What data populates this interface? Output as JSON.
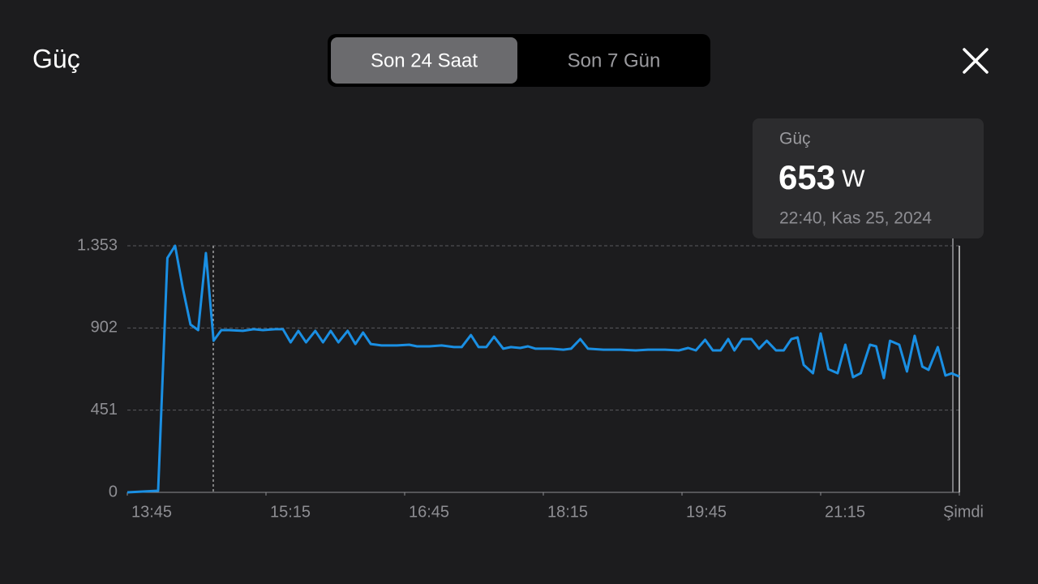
{
  "header": {
    "title": "Güç"
  },
  "segmented": {
    "tabs": [
      "Son 24 Saat",
      "Son 7 Gün"
    ],
    "selected": 0
  },
  "tooltip": {
    "label": "Güç",
    "value": 653,
    "unit": "W",
    "time": "22:40, Kas 25, 2024"
  },
  "chart_data": {
    "type": "line",
    "color": "#1a8fe3",
    "grid": true,
    "xlim": [
      825,
      1365
    ],
    "xticks": [
      {
        "value": 825,
        "label": "13:45"
      },
      {
        "value": 915,
        "label": "15:15"
      },
      {
        "value": 1005,
        "label": "16:45"
      },
      {
        "value": 1095,
        "label": "18:15"
      },
      {
        "value": 1185,
        "label": "19:45"
      },
      {
        "value": 1275,
        "label": "21:15"
      },
      {
        "value": 1365,
        "label": "Şimdi"
      }
    ],
    "ylim": [
      0,
      1353
    ],
    "yticks": [
      0,
      451,
      902,
      {
        "value": 1353,
        "label": "1.353"
      }
    ],
    "x": [
      825,
      845,
      851,
      856,
      861,
      866,
      871,
      876,
      881,
      886,
      891,
      900,
      907,
      913,
      921,
      926,
      931,
      936,
      941,
      947,
      952,
      957,
      962,
      968,
      973,
      978,
      983,
      990,
      1000,
      1008,
      1013,
      1021,
      1029,
      1037,
      1042,
      1048,
      1053,
      1058,
      1063,
      1069,
      1074,
      1080,
      1085,
      1090,
      1100,
      1108,
      1113,
      1119,
      1124,
      1134,
      1145,
      1155,
      1163,
      1174,
      1183,
      1189,
      1194,
      1200,
      1205,
      1210,
      1215,
      1219,
      1224,
      1230,
      1235,
      1240,
      1246,
      1251,
      1256,
      1260,
      1264,
      1270,
      1275,
      1280,
      1286,
      1291,
      1296,
      1301,
      1307,
      1311,
      1316,
      1320,
      1326,
      1331,
      1336,
      1341,
      1345,
      1351,
      1356,
      1360,
      1365
    ],
    "values": [
      0,
      9,
      1286,
      1353,
      1121,
      921,
      890,
      1313,
      832,
      890,
      890,
      886,
      895,
      890,
      895,
      895,
      823,
      886,
      823,
      886,
      823,
      886,
      823,
      886,
      814,
      877,
      814,
      806,
      806,
      810,
      801,
      801,
      806,
      797,
      797,
      863,
      797,
      797,
      854,
      788,
      797,
      792,
      801,
      788,
      788,
      783,
      788,
      841,
      788,
      783,
      783,
      779,
      783,
      783,
      779,
      792,
      779,
      837,
      779,
      779,
      841,
      779,
      841,
      841,
      788,
      832,
      779,
      779,
      841,
      850,
      699,
      654,
      872,
      676,
      654,
      810,
      632,
      654,
      810,
      801,
      627,
      832,
      810,
      663,
      859,
      690,
      672,
      797,
      641,
      653,
      635
    ]
  }
}
